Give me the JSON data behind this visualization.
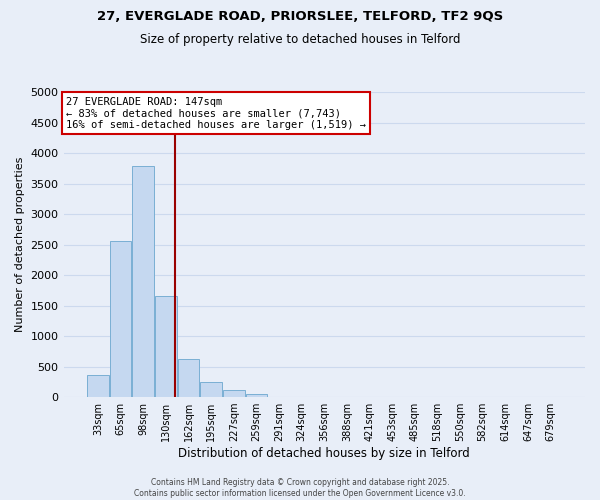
{
  "title_line1": "27, EVERGLADE ROAD, PRIORSLEE, TELFORD, TF2 9QS",
  "title_line2": "Size of property relative to detached houses in Telford",
  "xlabel": "Distribution of detached houses by size in Telford",
  "ylabel": "Number of detached properties",
  "bar_labels": [
    "33sqm",
    "65sqm",
    "98sqm",
    "130sqm",
    "162sqm",
    "195sqm",
    "227sqm",
    "259sqm",
    "291sqm",
    "324sqm",
    "356sqm",
    "388sqm",
    "421sqm",
    "453sqm",
    "485sqm",
    "518sqm",
    "550sqm",
    "582sqm",
    "614sqm",
    "647sqm",
    "679sqm"
  ],
  "bar_heights": [
    370,
    2550,
    3780,
    1660,
    620,
    240,
    110,
    50,
    0,
    0,
    0,
    0,
    0,
    0,
    0,
    0,
    0,
    0,
    0,
    0,
    0
  ],
  "bar_color": "#c5d8f0",
  "bar_edgecolor": "#7aafd4",
  "vline_color": "#990000",
  "ylim": [
    0,
    5000
  ],
  "yticks": [
    0,
    500,
    1000,
    1500,
    2000,
    2500,
    3000,
    3500,
    4000,
    4500,
    5000
  ],
  "annotation_title": "27 EVERGLADE ROAD: 147sqm",
  "annotation_line1": "← 83% of detached houses are smaller (7,743)",
  "annotation_line2": "16% of semi-detached houses are larger (1,519) →",
  "annotation_box_facecolor": "#ffffff",
  "annotation_box_edgecolor": "#cc0000",
  "footer_line1": "Contains HM Land Registry data © Crown copyright and database right 2025.",
  "footer_line2": "Contains public sector information licensed under the Open Government Licence v3.0.",
  "background_color": "#e8eef8",
  "grid_color": "#ccd9ee",
  "vline_x_index": 3.42
}
